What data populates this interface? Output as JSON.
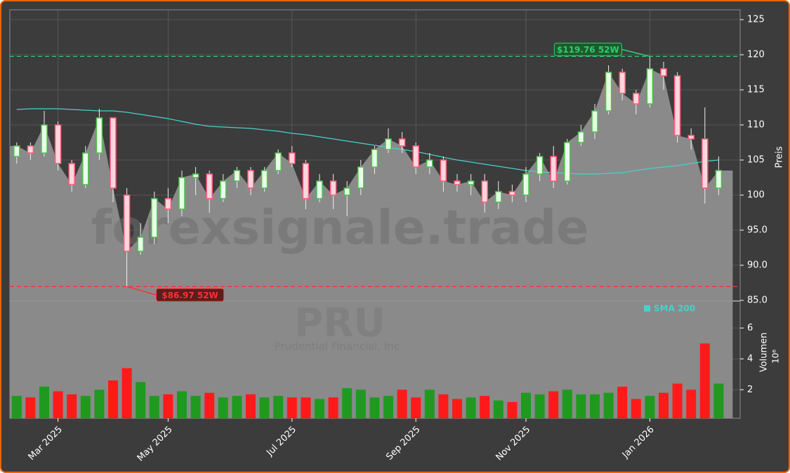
{
  "chart_data": {
    "type": "candlestick",
    "categories": [
      null,
      null,
      null,
      "Mar 2025",
      null,
      null,
      null,
      null,
      null,
      null,
      null,
      "May 2025",
      null,
      null,
      null,
      null,
      null,
      null,
      null,
      null,
      "Jul 2025",
      null,
      null,
      null,
      null,
      null,
      null,
      null,
      null,
      "Sep 2025",
      null,
      null,
      null,
      null,
      null,
      null,
      null,
      "Nov 2025",
      null,
      null,
      null,
      null,
      null,
      null,
      null,
      null,
      "Jan 2026",
      null,
      null,
      null,
      null,
      null
    ],
    "open": [
      105.5,
      107,
      106,
      110,
      104.5,
      101.5,
      106,
      111,
      100,
      92,
      94,
      99.5,
      98,
      102.5,
      103,
      99.5,
      102,
      103.5,
      101,
      103.5,
      106,
      104.5,
      99.5,
      102,
      100,
      101,
      104,
      106.5,
      108,
      107,
      104,
      105,
      102,
      101.5,
      102,
      99,
      100.5,
      100,
      103,
      105.5,
      102,
      107.5,
      109,
      112,
      117.5,
      114.5,
      113,
      118,
      117,
      108.5,
      108,
      101
    ],
    "high": [
      107.5,
      107.5,
      112,
      110.5,
      105,
      107,
      112.3,
      111,
      101,
      96,
      100.5,
      101,
      103.5,
      104,
      103.5,
      103,
      104,
      104,
      104,
      106.5,
      107,
      105,
      103,
      103,
      102,
      105,
      107,
      109.5,
      109,
      107.5,
      106,
      105.5,
      103,
      103,
      103,
      102,
      101.5,
      104,
      106,
      107,
      108,
      110,
      113,
      118.5,
      118,
      115,
      119.76,
      119,
      117.5,
      109.5,
      112.5,
      105.5
    ],
    "low": [
      104.5,
      105,
      105.5,
      103.5,
      100.5,
      101,
      105,
      99,
      86.97,
      91.5,
      93,
      96,
      97,
      100,
      97.5,
      99,
      101,
      100,
      100.5,
      103,
      104,
      98,
      99,
      98,
      97,
      100,
      103,
      106,
      106,
      103,
      103,
      100.5,
      100.5,
      100,
      97.5,
      98,
      99,
      99,
      102,
      101,
      101.5,
      107,
      108,
      111.5,
      113.5,
      111.5,
      112.5,
      115,
      107.5,
      106.5,
      98.8,
      100
    ],
    "close": [
      107,
      106,
      110,
      104.5,
      101.5,
      106,
      111,
      101,
      92,
      94,
      99.5,
      98,
      102.5,
      103,
      99.5,
      102,
      103.5,
      101,
      103.5,
      106,
      104.5,
      99.5,
      102,
      100,
      101,
      104,
      106.5,
      108,
      107,
      104,
      105,
      102,
      101.5,
      102,
      99,
      100.5,
      100,
      103,
      105.5,
      102,
      107.5,
      109,
      112,
      117.5,
      114.5,
      113,
      118,
      117,
      108.5,
      108,
      101,
      103.5
    ],
    "up_color": "#4fc04f",
    "down_color": "#ff5a78",
    "sma": {
      "name": "SMA 200",
      "color": "#48d1cc",
      "values": [
        112.2,
        112.3,
        112.3,
        112.3,
        112.2,
        112.1,
        112,
        112,
        111.8,
        111.5,
        111.2,
        110.9,
        110.5,
        110.1,
        109.8,
        109.7,
        109.6,
        109.5,
        109.3,
        109.1,
        108.8,
        108.6,
        108.3,
        108,
        107.7,
        107.4,
        107.1,
        106.8,
        106.5,
        106.2,
        105.8,
        105.4,
        105,
        104.7,
        104.4,
        104.1,
        103.8,
        103.5,
        103.3,
        103.2,
        103.1,
        103,
        103,
        103.1,
        103.2,
        103.5,
        103.8,
        104,
        104.2,
        104.5,
        104.8,
        105
      ]
    },
    "volume": {
      "label": "Volumen",
      "scale_label": "10⁶",
      "up_color": "#1f9a1f",
      "down_color": "#ff1a1a",
      "values": [
        1.6,
        1.5,
        2.2,
        1.9,
        1.7,
        1.6,
        2.0,
        2.6,
        3.4,
        2.5,
        1.6,
        1.7,
        1.9,
        1.6,
        1.8,
        1.5,
        1.6,
        1.7,
        1.5,
        1.6,
        1.5,
        1.5,
        1.4,
        1.5,
        2.1,
        2.0,
        1.5,
        1.6,
        2.0,
        1.5,
        2.0,
        1.7,
        1.4,
        1.5,
        1.6,
        1.3,
        1.2,
        1.8,
        1.7,
        1.9,
        2.0,
        1.7,
        1.7,
        1.8,
        2.2,
        1.4,
        1.6,
        1.8,
        2.4,
        2.0,
        5.0,
        2.4
      ],
      "ylim": [
        0.15,
        7.7
      ],
      "yticks": [
        2,
        4,
        6
      ]
    },
    "ylabel": "Preis",
    "ylim": [
      85,
      126.4
    ],
    "yticks": [
      {
        "value": 85,
        "label": "85.0"
      },
      {
        "value": 90,
        "label": "90.0"
      },
      {
        "value": 95,
        "label": "95.0"
      },
      100,
      105,
      110,
      115,
      120,
      125
    ],
    "grid": true,
    "annotations": [
      {
        "label": "$119.76 52W",
        "value": 119.76,
        "color": "#2ecc71"
      },
      {
        "label": "$86.97 52W",
        "value": 86.97,
        "color": "#ff3030"
      }
    ],
    "watermark": "forexsignale.trade",
    "ticker": "PRU",
    "company": "Prudential Financial, Inc"
  }
}
